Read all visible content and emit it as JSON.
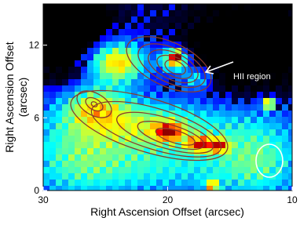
{
  "chart_data": {
    "type": "image",
    "xlabel": "Right Ascension Offset (arcsec)",
    "ylabel": [
      "Right Ascension Offset",
      "(arcsec)"
    ],
    "xlim": [
      30,
      10
    ],
    "xticks": [
      30,
      20,
      10
    ],
    "ylim": [
      0,
      15.4
    ],
    "yticks": [
      0,
      6,
      12
    ],
    "annotation": "HII region"
  }
}
